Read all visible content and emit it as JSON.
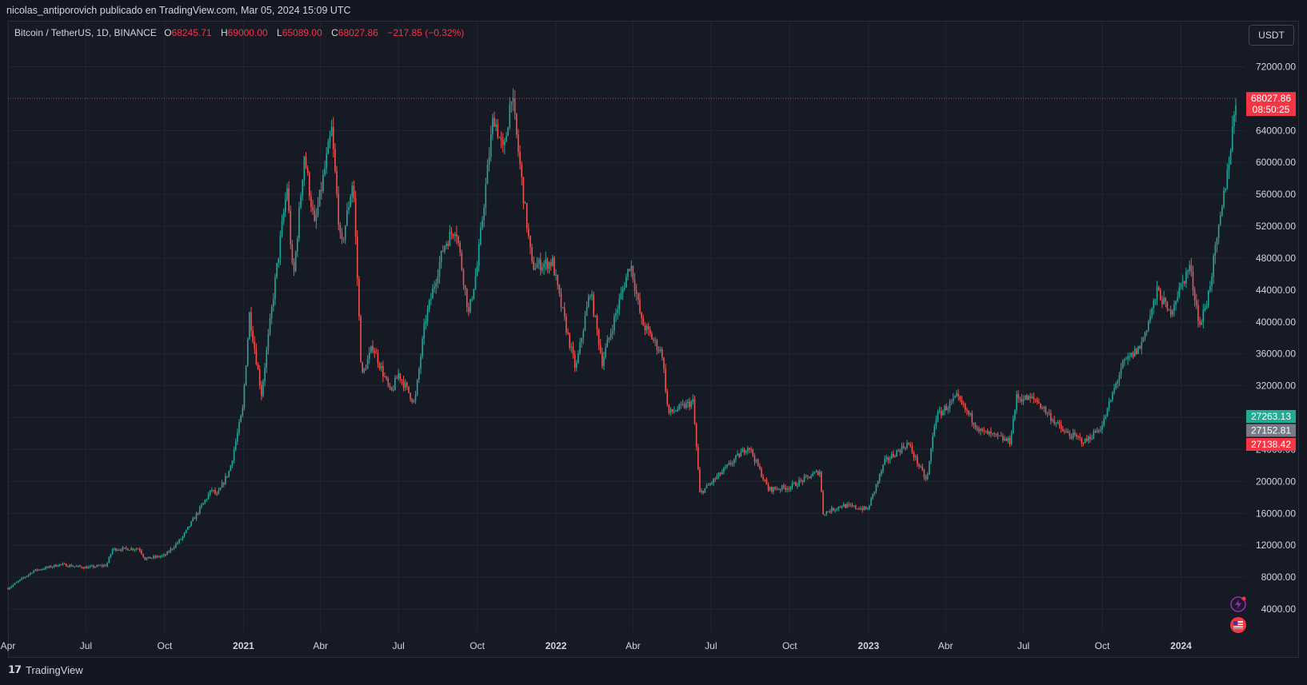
{
  "caption": "nicolas_antiporovich publicado en TradingView.com, Mar 05, 2024 15:09 UTC",
  "legend": {
    "symbol": "Bitcoin / TetherUS, 1D, BINANCE",
    "open_label": "O",
    "open": "68245.71",
    "high_label": "H",
    "high": "69000.00",
    "low_label": "L",
    "low": "65089.00",
    "close_label": "C",
    "close": "68027.86",
    "change": "−217.85 (−0.32%)"
  },
  "currency_button": "USDT",
  "brand": "TradingView",
  "icons": {
    "alert": "lightning-icon",
    "flag": "us-flag-icon"
  },
  "colors": {
    "up": "#26a69a",
    "down": "#ef5350",
    "last_price": "#f23645",
    "background": "#161a25",
    "grid": "#222631"
  },
  "chart_data": {
    "type": "candlestick",
    "title": "Bitcoin / TetherUS, 1D, BINANCE",
    "xlabel": "",
    "ylabel": "",
    "ylim": [
      0,
      76000
    ],
    "y_ticks": [
      "4000.00",
      "8000.00",
      "12000.00",
      "16000.00",
      "20000.00",
      "24000.00",
      "28000.00",
      "32000.00",
      "36000.00",
      "40000.00",
      "44000.00",
      "48000.00",
      "52000.00",
      "56000.00",
      "60000.00",
      "64000.00",
      "72000.00"
    ],
    "y_tick_values": [
      4000,
      8000,
      12000,
      16000,
      20000,
      24000,
      28000,
      32000,
      36000,
      40000,
      44000,
      48000,
      52000,
      56000,
      60000,
      64000,
      72000
    ],
    "x_ticks": [
      "Apr",
      "Jul",
      "Oct",
      "2021",
      "Abr",
      "Jul",
      "Oct",
      "2022",
      "Abr",
      "Jul",
      "Oct",
      "2023",
      "Abr",
      "Jul",
      "Oct",
      "2024"
    ],
    "x_tick_dates": [
      "2020-04-01",
      "2020-07-01",
      "2020-10-01",
      "2021-01-01",
      "2021-04-01",
      "2021-07-01",
      "2021-10-01",
      "2022-01-01",
      "2022-04-01",
      "2022-07-01",
      "2022-10-01",
      "2023-01-01",
      "2023-04-01",
      "2023-07-01",
      "2023-10-01",
      "2024-01-01"
    ],
    "x_range": [
      "2020-04-01",
      "2024-03-05"
    ],
    "series": [
      {
        "name": "Bitcoin / TetherUS",
        "points": [
          [
            "2020-04-01",
            6600
          ],
          [
            "2020-05-01",
            8800
          ],
          [
            "2020-06-01",
            9600
          ],
          [
            "2020-07-01",
            9200
          ],
          [
            "2020-07-25",
            9500
          ],
          [
            "2020-08-01",
            11500
          ],
          [
            "2020-09-01",
            11600
          ],
          [
            "2020-09-08",
            10300
          ],
          [
            "2020-10-01",
            10700
          ],
          [
            "2020-10-21",
            12900
          ],
          [
            "2020-11-05",
            15500
          ],
          [
            "2020-11-25",
            19000
          ],
          [
            "2020-12-01",
            18200
          ],
          [
            "2020-12-16",
            21500
          ],
          [
            "2020-12-31",
            29000
          ],
          [
            "2021-01-08",
            41000
          ],
          [
            "2021-01-22",
            31000
          ],
          [
            "2021-02-08",
            46000
          ],
          [
            "2021-02-21",
            57000
          ],
          [
            "2021-02-28",
            45000
          ],
          [
            "2021-03-13",
            61000
          ],
          [
            "2021-03-25",
            52000
          ],
          [
            "2021-04-14",
            64000
          ],
          [
            "2021-04-25",
            49000
          ],
          [
            "2021-05-09",
            58000
          ],
          [
            "2021-05-19",
            33000
          ],
          [
            "2021-06-01",
            37000
          ],
          [
            "2021-06-22",
            31000
          ],
          [
            "2021-07-01",
            33500
          ],
          [
            "2021-07-20",
            29800
          ],
          [
            "2021-08-01",
            40000
          ],
          [
            "2021-08-23",
            49500
          ],
          [
            "2021-09-06",
            52000
          ],
          [
            "2021-09-21",
            41000
          ],
          [
            "2021-10-01",
            47000
          ],
          [
            "2021-10-20",
            66000
          ],
          [
            "2021-11-01",
            61000
          ],
          [
            "2021-11-10",
            68800
          ],
          [
            "2021-11-26",
            54000
          ],
          [
            "2021-12-04",
            47000
          ],
          [
            "2021-12-28",
            47500
          ],
          [
            "2022-01-05",
            43000
          ],
          [
            "2022-01-24",
            34000
          ],
          [
            "2022-02-10",
            44000
          ],
          [
            "2022-02-24",
            35000
          ],
          [
            "2022-03-29",
            47500
          ],
          [
            "2022-04-11",
            40000
          ],
          [
            "2022-05-05",
            36000
          ],
          [
            "2022-05-12",
            28500
          ],
          [
            "2022-06-10",
            30000
          ],
          [
            "2022-06-18",
            18500
          ],
          [
            "2022-07-01",
            19800
          ],
          [
            "2022-08-14",
            24500
          ],
          [
            "2022-09-06",
            19000
          ],
          [
            "2022-10-01",
            19300
          ],
          [
            "2022-11-05",
            21300
          ],
          [
            "2022-11-09",
            16000
          ],
          [
            "2022-12-01",
            17000
          ],
          [
            "2022-12-31",
            16500
          ],
          [
            "2023-01-20",
            22500
          ],
          [
            "2023-02-16",
            24800
          ],
          [
            "2023-03-10",
            20000
          ],
          [
            "2023-03-20",
            28000
          ],
          [
            "2023-04-14",
            30500
          ],
          [
            "2023-05-12",
            26300
          ],
          [
            "2023-06-15",
            25000
          ],
          [
            "2023-06-23",
            30500
          ],
          [
            "2023-07-15",
            30300
          ],
          [
            "2023-08-17",
            26200
          ],
          [
            "2023-09-11",
            25000
          ],
          [
            "2023-10-01",
            27000
          ],
          [
            "2023-10-24",
            34500
          ],
          [
            "2023-11-15",
            37000
          ],
          [
            "2023-12-05",
            44000
          ],
          [
            "2023-12-18",
            41000
          ],
          [
            "2024-01-11",
            47000
          ],
          [
            "2024-01-23",
            39500
          ],
          [
            "2024-02-01",
            43000
          ],
          [
            "2024-02-15",
            52000
          ],
          [
            "2024-02-28",
            62000
          ],
          [
            "2024-03-05",
            68027.86
          ]
        ]
      }
    ],
    "price_labels": [
      {
        "text": "68027.86",
        "value": 68027.86,
        "color": "#f23645"
      },
      {
        "text": "08:50:25",
        "value": 66600,
        "color": "#f23645"
      },
      {
        "text": "27263.13",
        "value": 27263.13,
        "color": "#22ab94"
      },
      {
        "text": "27152.81",
        "value": 27152.81,
        "color": "#787b86"
      },
      {
        "text": "27138.42",
        "value": 27138.42,
        "color": "#f23645"
      }
    ]
  }
}
